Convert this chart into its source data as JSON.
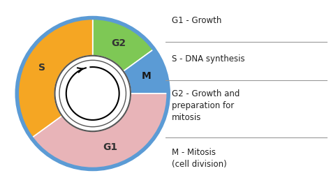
{
  "segments": [
    "G2",
    "M",
    "G1",
    "S"
  ],
  "sizes": [
    15,
    10,
    40,
    35
  ],
  "colors": [
    "#7ec855",
    "#5b9bd5",
    "#e8b4b8",
    "#f5a623"
  ],
  "labels": [
    "G2",
    "M",
    "G1",
    "S"
  ],
  "label_colors": [
    "#333333",
    "#1a1a1a",
    "#333333",
    "#333333"
  ],
  "outer_ring_color": "#5b9bd5",
  "legend_entries": [
    "G1 - Growth",
    "S - DNA synthesis",
    "G2 - Growth and\npreparation for\nmitosis",
    "M - Mitosis\n(cell division)"
  ],
  "bg_color": "#ffffff",
  "font_size_labels": 10,
  "font_size_legend": 8.5
}
